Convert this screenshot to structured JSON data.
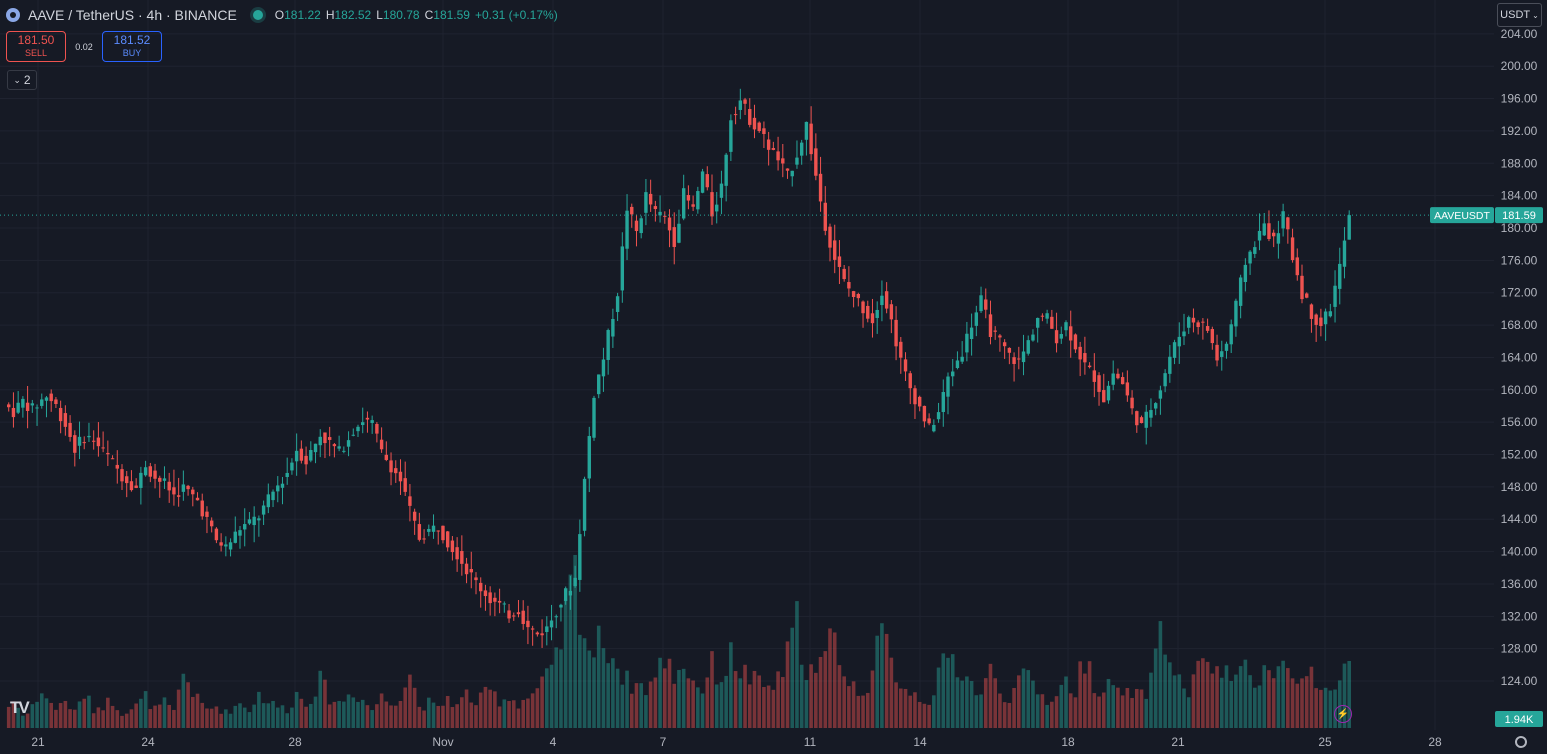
{
  "header": {
    "symbol": "AAVE / TetherUS · 4h · BINANCE",
    "open_label": "O",
    "open": "181.22",
    "high_label": "H",
    "high": "182.52",
    "low_label": "L",
    "low": "180.78",
    "close_label": "C",
    "close": "181.59",
    "change": "+0.31 (+0.17%)"
  },
  "trade": {
    "sell_price": "181.50",
    "sell_label": "SELL",
    "spread": "0.02",
    "buy_price": "181.52",
    "buy_label": "BUY"
  },
  "indicators_toggle": "2",
  "currency_button": "USDT",
  "colors": {
    "up": "#26a69a",
    "down": "#ef5350",
    "background": "#161a25",
    "grid": "#1f2330",
    "text": "#b2b5be"
  },
  "chart_data": {
    "type": "candlestick",
    "symbol": "AAVEUSDT",
    "timeframe": "4h",
    "last_price": 181.59,
    "last_price_label": "181.59",
    "last_price_tag": "AAVEUSDT",
    "volume_label": "1.94K",
    "ylim": [
      120,
      205
    ],
    "y_ticks": [
      "204.00",
      "200.00",
      "196.00",
      "192.00",
      "188.00",
      "184.00",
      "180.00",
      "176.00",
      "172.00",
      "168.00",
      "164.00",
      "160.00",
      "156.00",
      "152.00",
      "148.00",
      "144.00",
      "140.00",
      "136.00",
      "132.00",
      "128.00",
      "124.00"
    ],
    "x_ticks": [
      "21",
      "24",
      "28",
      "Nov",
      "4",
      "7",
      "11",
      "14",
      "18",
      "21",
      "25",
      "28"
    ],
    "candle_path": [
      [
        158.2,
        0
      ],
      [
        157.3,
        2
      ],
      [
        158.6,
        4
      ],
      [
        157.6,
        6
      ],
      [
        159.3,
        9
      ],
      [
        158.0,
        11
      ],
      [
        155.7,
        13
      ],
      [
        152.8,
        15
      ],
      [
        154.2,
        17
      ],
      [
        153.8,
        19
      ],
      [
        151.0,
        23
      ],
      [
        149.4,
        25
      ],
      [
        147.9,
        28
      ],
      [
        150.8,
        30
      ],
      [
        149.1,
        32
      ],
      [
        148.4,
        34
      ],
      [
        147.0,
        36
      ],
      [
        147.9,
        38
      ],
      [
        146.3,
        41
      ],
      [
        143.9,
        43
      ],
      [
        141.3,
        45
      ],
      [
        140.5,
        47
      ],
      [
        142.9,
        50
      ],
      [
        143.5,
        52
      ],
      [
        144.4,
        54
      ],
      [
        147.3,
        57
      ],
      [
        149.8,
        60
      ],
      [
        152.7,
        62
      ],
      [
        151.2,
        64
      ],
      [
        154.5,
        67
      ],
      [
        153.4,
        69
      ],
      [
        152.3,
        71
      ],
      [
        155.1,
        74
      ],
      [
        156.3,
        76
      ],
      [
        155.8,
        78
      ],
      [
        152.2,
        80
      ],
      [
        150.6,
        82
      ],
      [
        148.8,
        84
      ],
      [
        145.0,
        86
      ],
      [
        141.7,
        88
      ],
      [
        142.6,
        90
      ],
      [
        143.1,
        92
      ],
      [
        141.3,
        94
      ],
      [
        139.8,
        96
      ],
      [
        137.8,
        98
      ],
      [
        136.2,
        100
      ],
      [
        134.1,
        103
      ],
      [
        133.3,
        105
      ],
      [
        132.3,
        107
      ],
      [
        132.9,
        109
      ],
      [
        130.5,
        111
      ],
      [
        129.8,
        113
      ],
      [
        130.5,
        115
      ],
      [
        132.8,
        117
      ],
      [
        134.8,
        119
      ],
      [
        136.7,
        121
      ],
      [
        148.8,
        123
      ],
      [
        159.6,
        125
      ],
      [
        163.9,
        127
      ],
      [
        172.1,
        130
      ],
      [
        182.5,
        132
      ],
      [
        179.5,
        134
      ],
      [
        184.0,
        136
      ],
      [
        181.8,
        138
      ],
      [
        181.3,
        140
      ],
      [
        178.4,
        142
      ],
      [
        184.2,
        144
      ],
      [
        182.2,
        146
      ],
      [
        186.8,
        148
      ],
      [
        181.8,
        150
      ],
      [
        185.2,
        152
      ],
      [
        193.8,
        154
      ],
      [
        195.8,
        156
      ],
      [
        193.5,
        158
      ],
      [
        192.1,
        160
      ],
      [
        190.1,
        162
      ],
      [
        188.4,
        164
      ],
      [
        186.3,
        166
      ],
      [
        189.2,
        168
      ],
      [
        192.8,
        170
      ],
      [
        186.4,
        172
      ],
      [
        180.4,
        174
      ],
      [
        176.3,
        176
      ],
      [
        173.3,
        178
      ],
      [
        171.6,
        180
      ],
      [
        170.1,
        182
      ],
      [
        168.6,
        184
      ],
      [
        172.4,
        186
      ],
      [
        168.5,
        188
      ],
      [
        163.5,
        190
      ],
      [
        160.2,
        192
      ],
      [
        157.8,
        194
      ],
      [
        155.1,
        196
      ],
      [
        157.2,
        198
      ],
      [
        161.4,
        200
      ],
      [
        164.8,
        203
      ],
      [
        168.2,
        205
      ],
      [
        171.0,
        207
      ],
      [
        167.3,
        209
      ],
      [
        165.8,
        211
      ],
      [
        164.2,
        213
      ],
      [
        163.4,
        215
      ],
      [
        165.9,
        217
      ],
      [
        169.0,
        219
      ],
      [
        168.8,
        221
      ],
      [
        166.5,
        223
      ],
      [
        168.1,
        225
      ],
      [
        165.5,
        227
      ],
      [
        163.0,
        229
      ],
      [
        161.6,
        231
      ],
      [
        158.9,
        233
      ],
      [
        162.1,
        235
      ],
      [
        160.8,
        237
      ],
      [
        157.4,
        239
      ],
      [
        155.4,
        241
      ],
      [
        157.8,
        243
      ],
      [
        160.3,
        245
      ],
      [
        164.1,
        247
      ],
      [
        166.7,
        249
      ],
      [
        168.8,
        251
      ],
      [
        168.3,
        253
      ],
      [
        167.5,
        255
      ],
      [
        163.8,
        257
      ],
      [
        165.7,
        259
      ],
      [
        170.4,
        261
      ],
      [
        175.8,
        263
      ],
      [
        178.2,
        265
      ],
      [
        180.4,
        267
      ],
      [
        178.3,
        269
      ],
      [
        181.6,
        271
      ],
      [
        176.5,
        273
      ],
      [
        172.0,
        275
      ],
      [
        169.4,
        277
      ],
      [
        168.1,
        279
      ],
      [
        170.2,
        281
      ],
      [
        175.2,
        283
      ],
      [
        181.59,
        285
      ]
    ],
    "volume_path": [
      [
        0.1,
        0
      ],
      [
        0.18,
        2
      ],
      [
        0.08,
        4
      ],
      [
        0.15,
        6
      ],
      [
        0.22,
        9
      ],
      [
        0.12,
        11
      ],
      [
        0.18,
        13
      ],
      [
        0.1,
        15
      ],
      [
        0.22,
        17
      ],
      [
        0.12,
        19
      ],
      [
        0.18,
        23
      ],
      [
        0.1,
        25
      ],
      [
        0.14,
        28
      ],
      [
        0.2,
        30
      ],
      [
        0.12,
        32
      ],
      [
        0.16,
        34
      ],
      [
        0.1,
        36
      ],
      [
        0.36,
        38
      ],
      [
        0.18,
        41
      ],
      [
        0.12,
        43
      ],
      [
        0.14,
        45
      ],
      [
        0.1,
        47
      ],
      [
        0.16,
        50
      ],
      [
        0.12,
        52
      ],
      [
        0.22,
        54
      ],
      [
        0.15,
        57
      ],
      [
        0.12,
        60
      ],
      [
        0.22,
        62
      ],
      [
        0.16,
        64
      ],
      [
        0.3,
        67
      ],
      [
        0.2,
        69
      ],
      [
        0.16,
        71
      ],
      [
        0.24,
        74
      ],
      [
        0.18,
        76
      ],
      [
        0.12,
        78
      ],
      [
        0.2,
        80
      ],
      [
        0.16,
        82
      ],
      [
        0.22,
        84
      ],
      [
        0.36,
        86
      ],
      [
        0.14,
        88
      ],
      [
        0.16,
        90
      ],
      [
        0.12,
        92
      ],
      [
        0.2,
        94
      ],
      [
        0.14,
        96
      ],
      [
        0.22,
        98
      ],
      [
        0.16,
        100
      ],
      [
        0.24,
        103
      ],
      [
        0.18,
        105
      ],
      [
        0.2,
        107
      ],
      [
        0.16,
        109
      ],
      [
        0.2,
        111
      ],
      [
        0.24,
        113
      ],
      [
        0.32,
        115
      ],
      [
        0.42,
        117
      ],
      [
        0.72,
        119
      ],
      [
        1.0,
        121
      ],
      [
        0.6,
        123
      ],
      [
        0.48,
        125
      ],
      [
        0.6,
        127
      ],
      [
        0.4,
        130
      ],
      [
        0.3,
        132
      ],
      [
        0.28,
        134
      ],
      [
        0.26,
        136
      ],
      [
        0.32,
        138
      ],
      [
        0.46,
        140
      ],
      [
        0.34,
        142
      ],
      [
        0.42,
        144
      ],
      [
        0.3,
        146
      ],
      [
        0.26,
        148
      ],
      [
        0.4,
        150
      ],
      [
        0.32,
        152
      ],
      [
        0.46,
        154
      ],
      [
        0.38,
        156
      ],
      [
        0.32,
        158
      ],
      [
        0.28,
        160
      ],
      [
        0.26,
        162
      ],
      [
        0.3,
        164
      ],
      [
        0.46,
        166
      ],
      [
        0.68,
        168
      ],
      [
        0.4,
        170
      ],
      [
        0.34,
        172
      ],
      [
        0.44,
        174
      ],
      [
        0.7,
        176
      ],
      [
        0.32,
        178
      ],
      [
        0.26,
        180
      ],
      [
        0.24,
        182
      ],
      [
        0.36,
        184
      ],
      [
        0.6,
        186
      ],
      [
        0.42,
        188
      ],
      [
        0.3,
        190
      ],
      [
        0.24,
        192
      ],
      [
        0.2,
        194
      ],
      [
        0.18,
        196
      ],
      [
        0.32,
        198
      ],
      [
        0.46,
        200
      ],
      [
        0.38,
        203
      ],
      [
        0.28,
        205
      ],
      [
        0.22,
        207
      ],
      [
        0.36,
        209
      ],
      [
        0.24,
        211
      ],
      [
        0.2,
        213
      ],
      [
        0.28,
        215
      ],
      [
        0.34,
        217
      ],
      [
        0.24,
        219
      ],
      [
        0.18,
        221
      ],
      [
        0.22,
        223
      ],
      [
        0.3,
        225
      ],
      [
        0.24,
        227
      ],
      [
        0.46,
        229
      ],
      [
        0.3,
        231
      ],
      [
        0.22,
        233
      ],
      [
        0.3,
        235
      ],
      [
        0.18,
        237
      ],
      [
        0.24,
        239
      ],
      [
        0.2,
        241
      ],
      [
        0.3,
        243
      ],
      [
        0.72,
        245
      ],
      [
        0.4,
        247
      ],
      [
        0.3,
        249
      ],
      [
        0.24,
        251
      ],
      [
        0.36,
        253
      ],
      [
        0.48,
        255
      ],
      [
        0.32,
        257
      ],
      [
        0.4,
        259
      ],
      [
        0.28,
        261
      ],
      [
        0.42,
        263
      ],
      [
        0.32,
        265
      ],
      [
        0.4,
        267
      ],
      [
        0.3,
        269
      ],
      [
        0.46,
        271
      ],
      [
        0.3,
        273
      ],
      [
        0.28,
        275
      ],
      [
        0.32,
        277
      ],
      [
        0.2,
        279
      ],
      [
        0.22,
        281
      ],
      [
        0.3,
        283
      ],
      [
        0.52,
        285
      ]
    ]
  }
}
